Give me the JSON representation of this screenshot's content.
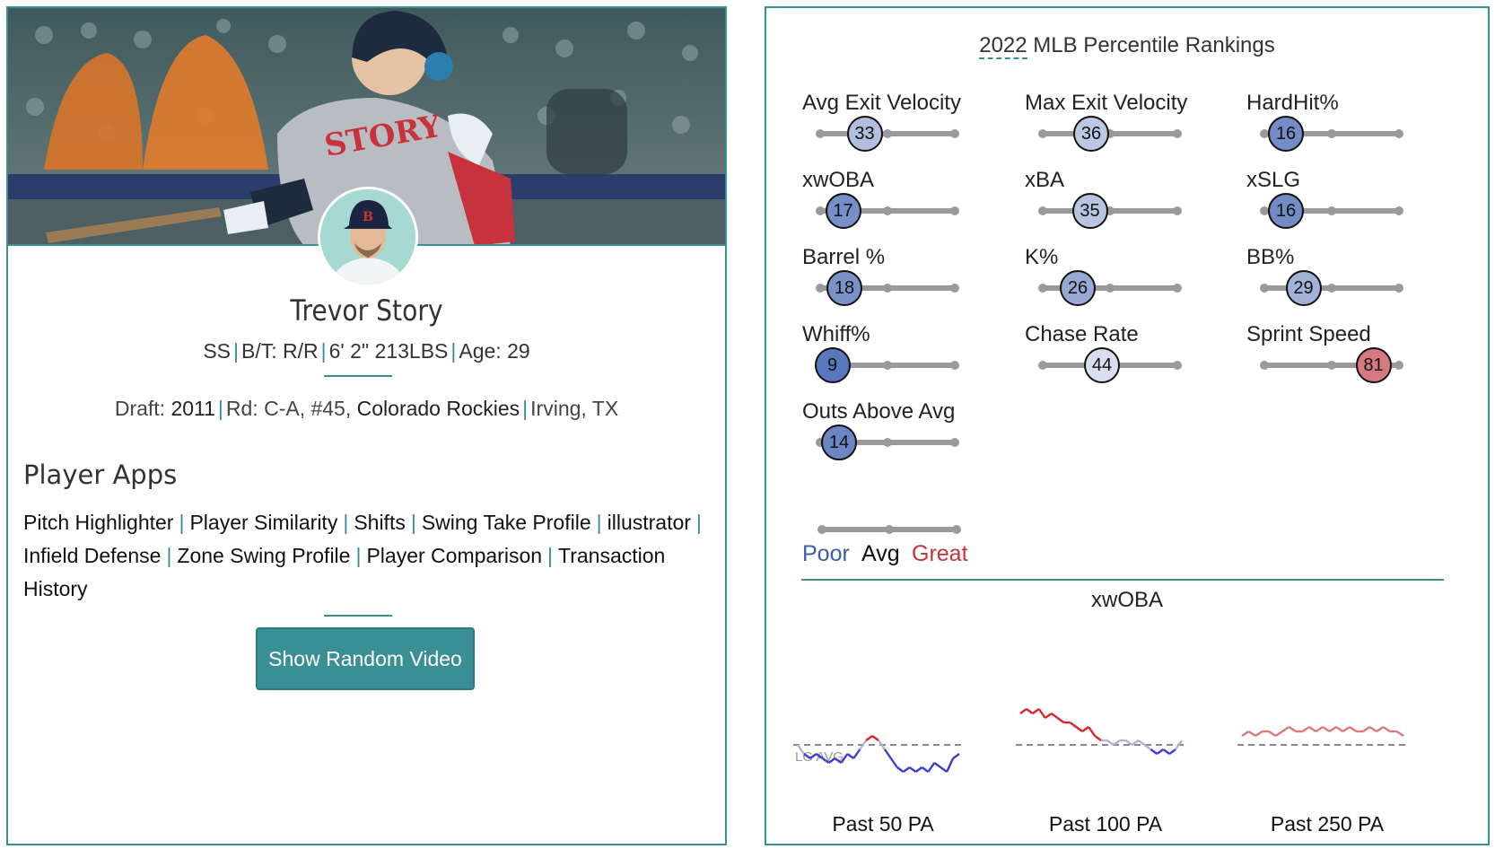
{
  "player": {
    "name": "Trevor Story",
    "position": "SS",
    "bt": "B/T: R/R",
    "size": "6' 2\" 213LBS",
    "age": "Age: 29",
    "draft_label": "Draft:",
    "draft_year": "2011",
    "draft_round": "Rd: C-A, #45,",
    "draft_team": "Colorado Rockies",
    "hometown": "Irving, TX",
    "jersey_text": "STORY"
  },
  "apps": {
    "heading": "Player Apps",
    "items": [
      "Pitch Highlighter",
      "Player Similarity",
      "Shifts",
      "Swing Take Profile",
      "illustrator",
      "Infield Defense",
      "Zone Swing Profile",
      "Player Comparison",
      "Transaction",
      "History"
    ]
  },
  "video_button": "Show Random Video",
  "percentiles": {
    "title_year": "2022",
    "title_rest": " MLB Percentile Rankings",
    "metrics": [
      {
        "label": "Avg Exit Velocity",
        "value": 33
      },
      {
        "label": "Max Exit Velocity",
        "value": 36
      },
      {
        "label": "HardHit%",
        "value": 16
      },
      {
        "label": "xwOBA",
        "value": 17
      },
      {
        "label": "xBA",
        "value": 35
      },
      {
        "label": "xSLG",
        "value": 16
      },
      {
        "label": "Barrel %",
        "value": 18
      },
      {
        "label": "K%",
        "value": 26
      },
      {
        "label": "BB%",
        "value": 29
      },
      {
        "label": "Whiff%",
        "value": 9
      },
      {
        "label": "Chase Rate",
        "value": 44
      },
      {
        "label": "Sprint Speed",
        "value": 81
      },
      {
        "label": "Outs Above Avg",
        "value": 14
      }
    ],
    "legend": {
      "poor": "Poor",
      "avg": "Avg",
      "great": "Great"
    },
    "colors": {
      "poor": "#3a5db0",
      "great": "#c8323c",
      "track": "#9a9a9a",
      "accent": "#3a8f95"
    }
  },
  "xwoba": {
    "title": "xwOBA",
    "lg_avg_label": "LG AVG",
    "windows": [
      {
        "label": "Past 50 PA",
        "values": [
          0.39,
          0.37,
          0.36,
          0.37,
          0.36,
          0.35,
          0.36,
          0.35,
          0.37,
          0.36,
          0.38,
          0.4,
          0.41,
          0.4,
          0.38,
          0.36,
          0.34,
          0.33,
          0.34,
          0.33,
          0.34,
          0.33,
          0.35,
          0.34,
          0.33,
          0.36,
          0.37
        ]
      },
      {
        "label": "Past 100 PA",
        "values": [
          0.46,
          0.47,
          0.46,
          0.47,
          0.45,
          0.46,
          0.45,
          0.44,
          0.44,
          0.43,
          0.42,
          0.43,
          0.41,
          0.4,
          0.4,
          0.39,
          0.4,
          0.4,
          0.39,
          0.4,
          0.39,
          0.38,
          0.37,
          0.38,
          0.37,
          0.38,
          0.4
        ]
      },
      {
        "label": "Past 250 PA",
        "values": [
          0.41,
          0.42,
          0.41,
          0.42,
          0.42,
          0.41,
          0.42,
          0.43,
          0.42,
          0.42,
          0.43,
          0.42,
          0.43,
          0.42,
          0.43,
          0.42,
          0.43,
          0.42,
          0.42,
          0.43,
          0.42,
          0.43,
          0.42,
          0.42,
          0.41
        ]
      }
    ]
  }
}
